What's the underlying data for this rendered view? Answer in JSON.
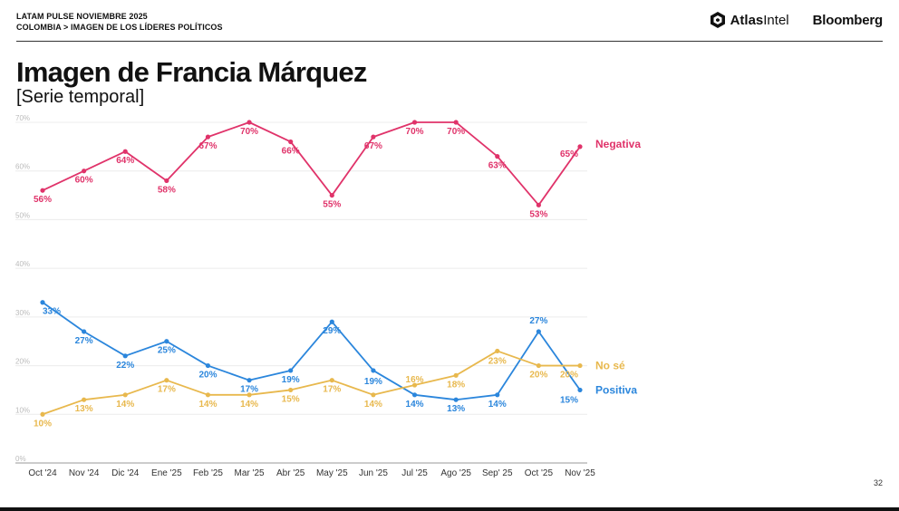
{
  "header": {
    "line1": "LATAM PULSE NOVIEMBRE 2025",
    "line2": "COLOMBIA > IMAGEN DE LOS LÍDERES POLÍTICOS",
    "brand_atlas_bold": "Atlas",
    "brand_atlas_light": "Intel",
    "brand_bloomberg": "Bloomberg",
    "atlas_logo_icon": "atlasintel-logo-icon"
  },
  "title": "Imagen de Francia Márquez",
  "subtitle": "[Serie temporal]",
  "page_number": "32",
  "colors": {
    "Negativa": "#e0336a",
    "Positiva": "#2b86dc",
    "No sé": "#e8b84d"
  },
  "chart_data": {
    "type": "line",
    "title": "Imagen de Francia Márquez",
    "subtitle": "[Serie temporal]",
    "categories": [
      "Oct '24",
      "Nov '24",
      "Dic '24",
      "Ene '25",
      "Feb '25",
      "Mar '25",
      "Abr '25",
      "May '25",
      "Jun '25",
      "Jul '25",
      "Ago '25",
      "Sep' 25",
      "Oct '25",
      "Nov '25"
    ],
    "ylim": [
      0,
      70
    ],
    "yticks": [
      "0%",
      "10%",
      "20%",
      "30%",
      "40%",
      "50%",
      "60%",
      "70%"
    ],
    "grid": true,
    "legend": "right (series names at line ends)",
    "series": [
      {
        "name": "Negativa",
        "values": [
          56,
          60,
          64,
          58,
          67,
          70,
          66,
          55,
          67,
          70,
          70,
          63,
          53,
          65
        ],
        "labels": [
          "56%",
          "60%",
          "64%",
          "58%",
          "67%",
          "70%",
          "66%",
          "55%",
          "67%",
          "70%",
          "70%",
          "63%",
          "53%",
          "65%"
        ]
      },
      {
        "name": "Positiva",
        "values": [
          33,
          27,
          22,
          25,
          20,
          17,
          19,
          29,
          19,
          14,
          13,
          14,
          27,
          15
        ],
        "labels": [
          "33%",
          "27%",
          "22%",
          "25%",
          "20%",
          "17%",
          "19%",
          "29%",
          "19%",
          "14%",
          "13%",
          "14%",
          "27%",
          "15%"
        ]
      },
      {
        "name": "No sé",
        "values": [
          10,
          13,
          14,
          17,
          14,
          14,
          15,
          17,
          14,
          16,
          18,
          23,
          20,
          20
        ],
        "labels": [
          "10%",
          "13%",
          "14%",
          "17%",
          "14%",
          "14%",
          "15%",
          "17%",
          "14%",
          "16%",
          "18%",
          "23%",
          "20%",
          "20%"
        ]
      }
    ]
  }
}
